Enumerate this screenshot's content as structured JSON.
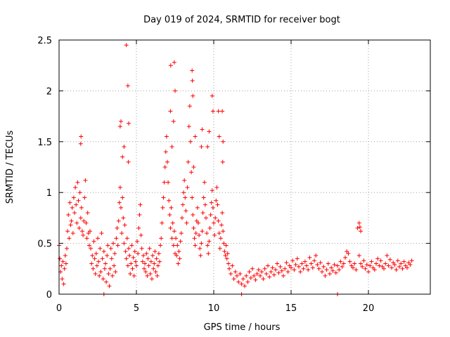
{
  "chart_data": {
    "type": "scatter",
    "title": "Day 019 of 2024, SRMTID for receiver bogt",
    "xlabel": "GPS time / hours",
    "ylabel": "SRMTID / TECUs",
    "xlim": [
      0,
      24
    ],
    "ylim": [
      0,
      2.5
    ],
    "grid": true,
    "marker": "plus",
    "color": "#ff0000",
    "xticks": [
      0,
      5,
      10,
      15,
      20
    ],
    "xtick_labels": [
      "0",
      "5",
      "10",
      "15",
      "20"
    ],
    "yticks": [
      0,
      0.5,
      1,
      1.5,
      2,
      2.5
    ],
    "ytick_labels": [
      "0",
      "0.5",
      "1",
      "1.5",
      "2",
      "2.5"
    ],
    "series": [
      {
        "name": "SRMTID",
        "x": [
          0.0,
          0.05,
          0.1,
          0.15,
          0.2,
          0.25,
          0.3,
          0.35,
          0.4,
          0.45,
          0.5,
          0.55,
          0.6,
          0.65,
          0.7,
          0.75,
          0.8,
          0.85,
          0.9,
          0.95,
          1.0,
          1.05,
          1.1,
          1.15,
          1.2,
          1.25,
          1.3,
          1.35,
          1.4,
          1.45,
          1.5,
          1.55,
          1.6,
          1.65,
          1.7,
          1.75,
          1.8,
          1.85,
          1.9,
          1.95,
          2.0,
          2.05,
          2.1,
          2.15,
          2.2,
          2.25,
          2.3,
          2.35,
          2.4,
          2.45,
          2.5,
          2.55,
          2.6,
          2.65,
          2.7,
          2.75,
          2.8,
          2.85,
          2.9,
          2.95,
          3.0,
          3.05,
          3.1,
          3.15,
          3.2,
          3.25,
          3.3,
          3.35,
          3.4,
          3.45,
          3.5,
          3.55,
          3.6,
          3.65,
          3.7,
          3.75,
          3.8,
          3.85,
          3.9,
          3.95,
          4.0,
          4.05,
          4.1,
          4.15,
          4.2,
          4.25,
          4.3,
          4.35,
          4.4,
          4.45,
          4.5,
          4.55,
          4.6,
          4.65,
          4.7,
          4.75,
          4.8,
          4.85,
          4.9,
          4.95,
          5.0,
          5.05,
          5.1,
          5.15,
          5.2,
          5.25,
          5.3,
          5.35,
          5.4,
          5.45,
          5.5,
          5.55,
          5.6,
          5.65,
          5.7,
          5.75,
          5.8,
          5.85,
          5.9,
          5.95,
          6.0,
          6.05,
          6.1,
          6.15,
          6.2,
          6.25,
          6.3,
          6.35,
          6.4,
          6.45,
          6.5,
          6.55,
          6.6,
          6.65,
          6.7,
          6.75,
          6.8,
          6.85,
          6.9,
          6.95,
          7.0,
          7.05,
          7.1,
          7.15,
          7.2,
          7.25,
          7.3,
          7.35,
          7.4,
          7.45,
          7.5,
          7.55,
          7.6,
          7.65,
          7.7,
          7.75,
          7.8,
          7.85,
          7.9,
          7.95,
          8.0,
          8.05,
          8.1,
          8.15,
          8.2,
          8.25,
          8.3,
          8.35,
          8.4,
          8.45,
          8.5,
          8.55,
          8.6,
          8.65,
          8.7,
          8.75,
          8.8,
          8.85,
          8.9,
          8.95,
          9.0,
          9.05,
          9.1,
          9.15,
          9.2,
          9.25,
          9.3,
          9.35,
          9.4,
          9.45,
          9.5,
          9.55,
          9.6,
          9.65,
          9.7,
          9.75,
          9.8,
          9.85,
          9.9,
          9.95,
          10.0,
          10.05,
          10.1,
          10.15,
          10.2,
          10.25,
          10.3,
          10.35,
          10.4,
          10.45,
          10.5,
          10.55,
          10.6,
          10.65,
          10.7,
          10.75,
          10.8,
          10.85,
          10.9,
          10.95,
          11.0,
          11.1,
          11.2,
          11.3,
          11.4,
          11.5,
          11.6,
          11.7,
          11.8,
          11.9,
          12.0,
          12.1,
          12.2,
          12.3,
          12.4,
          12.5,
          12.6,
          12.7,
          12.8,
          12.9,
          13.0,
          13.1,
          13.2,
          13.3,
          13.4,
          13.5,
          13.6,
          13.7,
          13.8,
          13.9,
          14.0,
          14.1,
          14.2,
          14.3,
          14.4,
          14.5,
          14.6,
          14.7,
          14.8,
          14.9,
          15.0,
          15.1,
          15.2,
          15.3,
          15.4,
          15.5,
          15.6,
          15.7,
          15.8,
          15.9,
          16.0,
          16.1,
          16.2,
          16.3,
          16.4,
          16.5,
          16.6,
          16.7,
          16.8,
          16.9,
          17.0,
          17.1,
          17.2,
          17.3,
          17.4,
          17.5,
          17.6,
          17.7,
          17.8,
          17.9,
          18.0,
          18.1,
          18.2,
          18.3,
          18.4,
          18.5,
          18.6,
          18.7,
          18.8,
          18.9,
          19.0,
          19.1,
          19.2,
          19.3,
          19.4,
          19.5,
          19.6,
          19.7,
          19.8,
          19.9,
          20.0,
          20.1,
          20.2,
          20.3,
          20.4,
          20.5,
          20.6,
          20.7,
          20.8,
          20.9,
          21.0,
          21.1,
          21.2,
          21.3,
          21.4,
          21.5,
          21.6,
          21.7,
          21.8,
          21.9,
          22.0,
          22.1,
          22.2,
          22.3,
          22.4,
          22.5,
          22.6,
          22.7,
          22.8,
          1.4,
          1.42,
          4.35,
          4.45,
          4.5,
          4.48,
          7.2,
          7.22,
          7.45,
          7.5,
          8.6,
          8.62,
          8.65,
          9.2,
          9.25,
          9.9,
          9.95,
          10.3,
          10.35,
          10.55,
          10.58,
          10.6,
          3.95,
          4.0,
          4.1,
          4.2,
          7.3,
          7.4,
          8.7,
          8.8,
          9.6,
          9.7,
          19.4,
          19.45,
          19.5,
          11.8,
          18.0,
          2.9
        ],
        "y": [
          0.48,
          0.35,
          0.22,
          0.28,
          0.15,
          0.32,
          0.1,
          0.25,
          0.38,
          0.3,
          0.45,
          0.62,
          0.78,
          0.55,
          0.9,
          0.68,
          0.72,
          0.85,
          0.6,
          0.95,
          0.8,
          1.05,
          0.88,
          0.7,
          1.1,
          0.92,
          0.65,
          1.0,
          0.75,
          0.85,
          0.62,
          0.58,
          0.72,
          0.95,
          1.12,
          0.7,
          0.55,
          0.8,
          0.6,
          0.48,
          0.62,
          0.45,
          0.3,
          0.38,
          0.25,
          0.52,
          0.35,
          0.2,
          0.4,
          0.28,
          0.55,
          0.32,
          0.18,
          0.45,
          0.22,
          0.6,
          0.35,
          0.15,
          0.42,
          0.25,
          0.3,
          0.12,
          0.38,
          0.48,
          0.2,
          0.08,
          0.25,
          0.45,
          0.35,
          0.18,
          0.5,
          0.28,
          0.4,
          0.22,
          0.55,
          0.65,
          0.48,
          0.72,
          0.9,
          1.05,
          0.85,
          0.6,
          0.95,
          0.75,
          0.5,
          0.68,
          0.42,
          0.35,
          0.55,
          0.28,
          0.45,
          0.38,
          0.2,
          0.3,
          0.48,
          0.25,
          0.36,
          0.18,
          0.42,
          0.32,
          0.28,
          0.52,
          0.4,
          0.65,
          0.78,
          0.88,
          0.58,
          0.45,
          0.32,
          0.38,
          0.25,
          0.3,
          0.22,
          0.4,
          0.18,
          0.35,
          0.28,
          0.45,
          0.2,
          0.32,
          0.15,
          0.38,
          0.25,
          0.3,
          0.42,
          0.22,
          0.35,
          0.18,
          0.28,
          0.4,
          0.32,
          0.48,
          0.55,
          0.7,
          0.85,
          0.95,
          1.1,
          1.25,
          1.4,
          1.55,
          1.3,
          1.1,
          0.92,
          0.78,
          0.65,
          0.85,
          0.55,
          0.7,
          0.48,
          0.62,
          0.4,
          0.55,
          0.38,
          0.48,
          0.3,
          0.42,
          0.35,
          0.52,
          0.6,
          0.75,
          0.88,
          1.0,
          1.12,
          0.95,
          0.82,
          0.7,
          1.05,
          1.3,
          1.65,
          1.85,
          1.5,
          1.2,
          0.95,
          0.78,
          0.65,
          0.55,
          0.48,
          0.6,
          0.72,
          0.85,
          0.7,
          0.58,
          0.45,
          0.38,
          0.5,
          0.62,
          0.8,
          0.95,
          1.1,
          0.88,
          0.75,
          0.6,
          0.48,
          0.4,
          0.52,
          0.65,
          0.78,
          0.9,
          1.02,
          0.85,
          0.7,
          0.58,
          0.75,
          0.92,
          1.05,
          0.88,
          0.72,
          0.6,
          0.45,
          0.55,
          0.68,
          0.8,
          0.62,
          0.5,
          0.42,
          0.38,
          0.48,
          0.35,
          0.4,
          0.3,
          0.25,
          0.2,
          0.28,
          0.15,
          0.22,
          0.18,
          0.12,
          0.2,
          0.1,
          0.15,
          0.08,
          0.18,
          0.12,
          0.22,
          0.16,
          0.25,
          0.18,
          0.14,
          0.2,
          0.24,
          0.18,
          0.22,
          0.15,
          0.25,
          0.2,
          0.28,
          0.17,
          0.22,
          0.26,
          0.19,
          0.24,
          0.3,
          0.21,
          0.27,
          0.23,
          0.18,
          0.25,
          0.31,
          0.22,
          0.28,
          0.26,
          0.33,
          0.24,
          0.29,
          0.35,
          0.27,
          0.22,
          0.3,
          0.25,
          0.32,
          0.28,
          0.24,
          0.36,
          0.3,
          0.26,
          0.33,
          0.38,
          0.29,
          0.25,
          0.31,
          0.22,
          0.27,
          0.18,
          0.24,
          0.3,
          0.2,
          0.26,
          0.23,
          0.29,
          0.21,
          0.28,
          0.24,
          0.32,
          0.27,
          0.3,
          0.36,
          0.42,
          0.4,
          0.32,
          0.28,
          0.26,
          0.3,
          0.24,
          0.65,
          0.38,
          0.3,
          0.27,
          0.33,
          0.25,
          0.29,
          0.22,
          0.28,
          0.32,
          0.26,
          0.24,
          0.3,
          0.35,
          0.28,
          0.33,
          0.27,
          0.25,
          0.3,
          0.38,
          0.28,
          0.34,
          0.26,
          0.31,
          0.29,
          0.24,
          0.33,
          0.27,
          0.3,
          0.25,
          0.32,
          0.28,
          0.26,
          0.31,
          0.29,
          0.33,
          1.48,
          1.55,
          2.45,
          2.05,
          1.68,
          1.3,
          1.8,
          2.25,
          2.28,
          2.0,
          2.2,
          2.1,
          1.95,
          1.45,
          1.62,
          1.95,
          1.8,
          1.8,
          1.55,
          1.8,
          1.3,
          1.5,
          1.65,
          1.7,
          1.35,
          1.45,
          1.45,
          1.7,
          1.25,
          1.55,
          1.45,
          1.6,
          0.7,
          0.66,
          0.62,
          0.0,
          0.0,
          0.0
        ]
      }
    ]
  }
}
